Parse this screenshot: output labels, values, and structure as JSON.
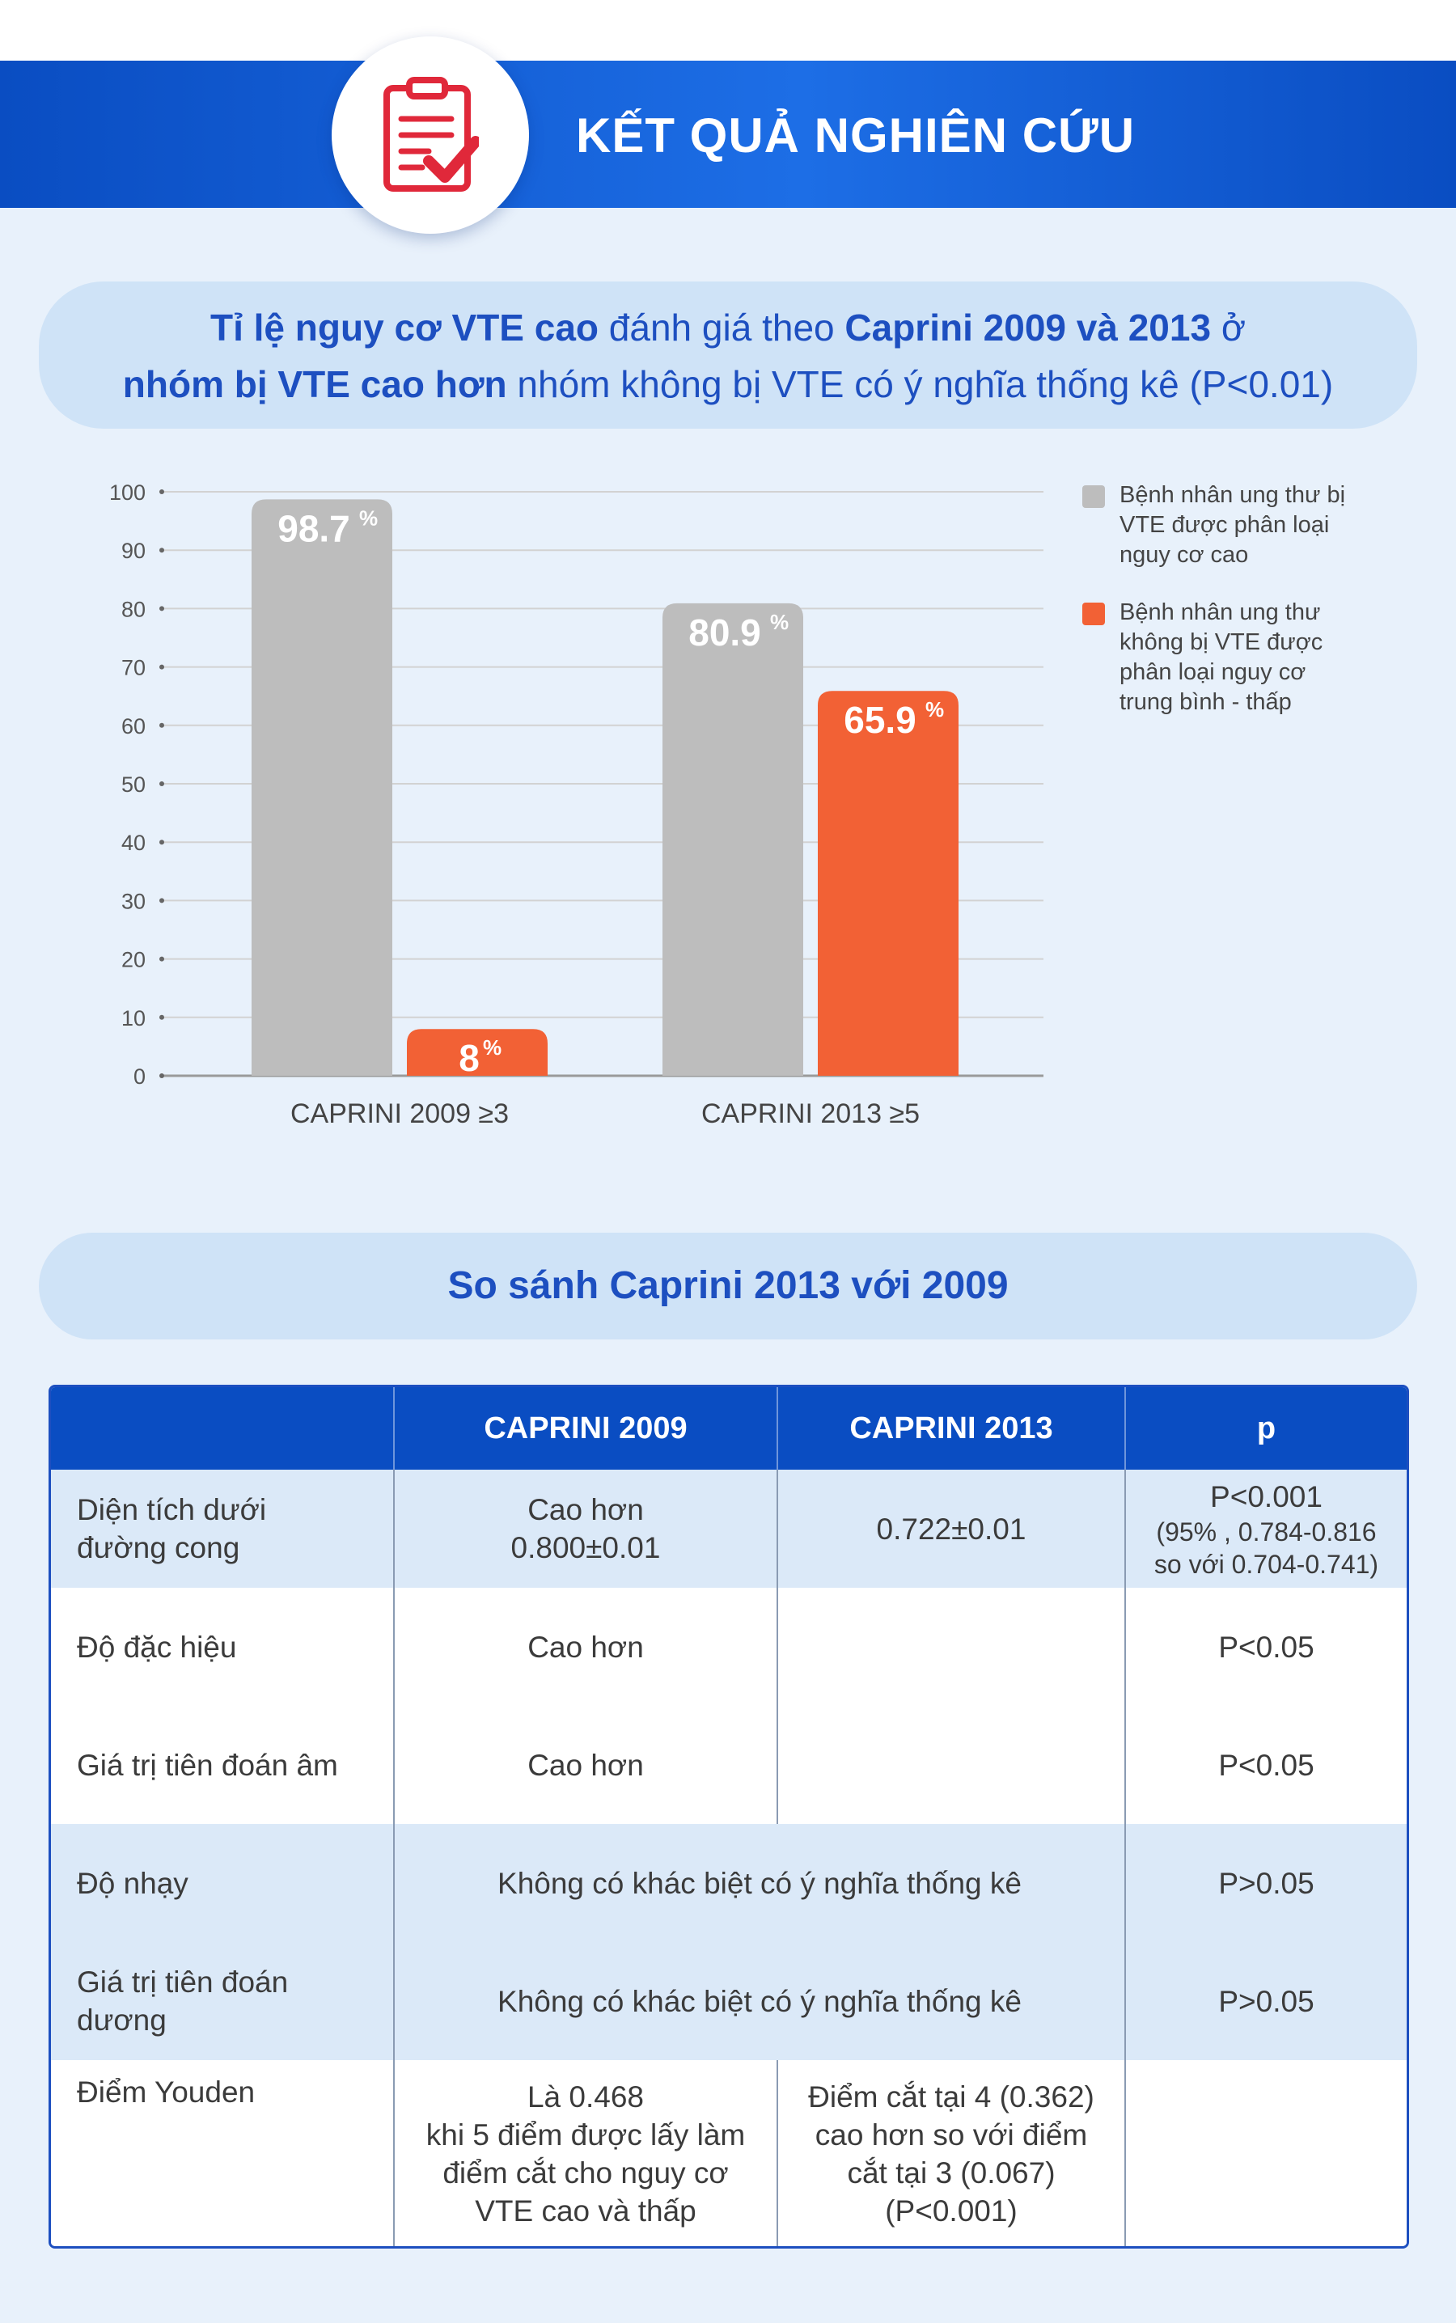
{
  "header": {
    "title": "KẾT QUẢ NGHIÊN CỨU",
    "icon": "clipboard-check-icon"
  },
  "colors": {
    "gray_series": "#bdbdbd",
    "orange_series": "#f26135",
    "brand_blue": "#0a4dc2"
  },
  "headline": {
    "line1_bold1": "Tỉ lệ nguy cơ VTE cao",
    "line1_mid": " đánh giá theo ",
    "line1_bold2": "Caprini 2009 và 2013",
    "line1_end": " ở",
    "line2_bold": "nhóm bị VTE cao hơn",
    "line2_rest": " nhóm không bị VTE có ý nghĩa thống kê (P<0.01)"
  },
  "chart_data": {
    "type": "bar",
    "categories": [
      "CAPRINI 2009 ≥3",
      "CAPRINI 2013 ≥5"
    ],
    "series": [
      {
        "name": "Bệnh nhân ung thư bị VTE được phân loại nguy cơ cao",
        "color": "#bdbdbd",
        "values": [
          98.7,
          80.9
        ],
        "labels": [
          "98.7",
          "80.9"
        ]
      },
      {
        "name": "Bệnh nhân ung thư không bị VTE được phân loại nguy cơ trung bình - thấp",
        "color": "#f26135",
        "values": [
          8,
          65.9
        ],
        "labels": [
          "8",
          "65.9"
        ]
      }
    ],
    "value_suffix": "%",
    "ylim": [
      0,
      100
    ],
    "yticks": [
      "0",
      "10",
      "20",
      "30",
      "40",
      "50",
      "60",
      "70",
      "80",
      "90",
      "100"
    ],
    "grid": true,
    "legend_position": "right"
  },
  "legend": {
    "items": [
      {
        "lines": [
          "Bệnh nhân ung thư bị",
          "VTE được phân loại",
          "nguy cơ cao"
        ],
        "color": "#bdbdbd"
      },
      {
        "lines": [
          "Bệnh nhân ung thư",
          "không bị VTE được",
          "phân loại nguy cơ",
          "trung bình - thấp"
        ],
        "color": "#f26135"
      }
    ]
  },
  "comparison": {
    "title": "So sánh Caprini 2013 với 2009",
    "headers": [
      "",
      "CAPRINI 2009",
      "CAPRINI 2013",
      "p"
    ],
    "rows": {
      "auc": {
        "label_lines": [
          "Diện tích dưới",
          "đường cong"
        ],
        "c2009_lines": [
          "Cao hơn",
          "0.800±0.01"
        ],
        "c2013": "0.722±0.01",
        "p_main": "P<0.001",
        "p_detail_lines": [
          "(95% , 0.784-0.816",
          "so với 0.704-0.741)"
        ]
      },
      "specificity": {
        "label": "Độ đặc hiệu",
        "c2009": "Cao hơn",
        "c2013": "",
        "p": "P<0.05"
      },
      "npv": {
        "label": "Giá trị tiên đoán âm",
        "c2009": "Cao hơn",
        "c2013": "",
        "p": "P<0.05"
      },
      "sensitivity": {
        "label": "Độ nhạy",
        "merged": "Không có khác biệt có ý nghĩa thống kê",
        "p": "P>0.05"
      },
      "ppv": {
        "label_lines": [
          "Giá trị tiên đoán",
          "dương"
        ],
        "merged": "Không có khác biệt có ý nghĩa thống kê",
        "p": "P>0.05"
      },
      "youden": {
        "label": "Điểm Youden",
        "c2009_lines": [
          "Là 0.468",
          "khi 5 điểm được lấy làm",
          "điểm cắt cho nguy cơ",
          "VTE cao và thấp"
        ],
        "c2013_lines": [
          "Điểm cắt tại 4 (0.362)",
          "cao hơn so với điểm",
          "cắt tại 3 (0.067)",
          "(P<0.001)"
        ],
        "p": ""
      }
    }
  }
}
